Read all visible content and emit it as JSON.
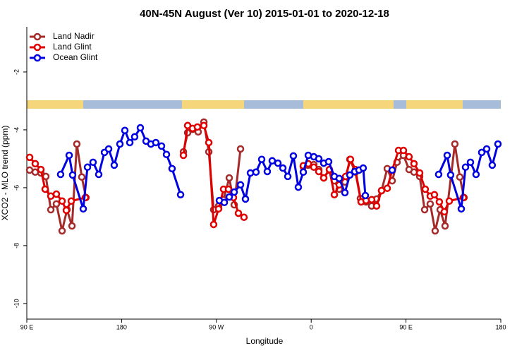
{
  "chart_data": {
    "type": "line",
    "title": "40N-45N August (Ver 10)   2015-01-01 to 2020-12-18",
    "x_label": "Longitude",
    "y_label": "XCO2 - MLO trend (ppm)",
    "xlim": [
      90,
      540
    ],
    "ylim": [
      -10.54,
      -0.44
    ],
    "xticks": [
      {
        "value": 90,
        "label": "90 E"
      },
      180,
      {
        "value": 270,
        "label": "90 W"
      },
      {
        "value": 360,
        "label": "0"
      },
      {
        "value": 450,
        "label": "90 E"
      },
      {
        "value": 540,
        "label": "180"
      }
    ],
    "yticks": [
      -2,
      -4,
      -6,
      -8,
      -10
    ],
    "legend": "top-left",
    "grid": false,
    "series": [
      {
        "name": "Land Nadir",
        "color": "#a52a2a",
        "x": [
          92.7,
          98.0,
          103.4,
          108.1,
          112.8,
          118.1,
          123.5,
          128.2,
          132.9,
          137.5,
          142.2,
          146.2,
          null,
          238.7,
          242.7,
          247.4,
          252.7,
          258.1,
          262.8,
          267.4,
          272.1,
          276.8,
          282.2,
          286.9,
          292.9,
          null,
          352.5,
          357.2,
          362.5,
          367.2,
          371.9,
          377.3,
          382.0,
          386.6,
          392.0,
          396.7,
          402.0,
          406.7,
          412.1,
          417.4,
          422.1,
          426.8,
          432.2,
          436.9,
          441.5,
          447.6,
          452.9,
          457.6,
          463.0,
          467.7,
          473.0,
          477.7,
          482.4,
          487.1,
          496.4,
          501.1,
          505.1
        ],
        "values": [
          -5.39,
          -5.46,
          -5.49,
          -5.61,
          -6.76,
          -6.56,
          -7.49,
          -6.76,
          -7.32,
          -4.49,
          -5.63,
          -6.34,
          null,
          -4.76,
          -4.1,
          -3.98,
          -4.07,
          -3.73,
          -4.76,
          -6.76,
          -6.63,
          -6.41,
          -5.66,
          -6.59,
          -4.66,
          null,
          -5.27,
          -5.22,
          -5.2,
          -5.37,
          -5.66,
          -5.39,
          -5.76,
          -6.05,
          -5.8,
          -5.02,
          -5.46,
          -6.37,
          -6.49,
          -6.63,
          -6.39,
          -6.1,
          -5.34,
          -5.76,
          -5.12,
          -4.88,
          -5.37,
          -5.46,
          -5.61,
          -6.76,
          -6.56,
          -7.49,
          -6.76,
          -7.32,
          -4.49,
          -5.63,
          -6.34
        ]
      },
      {
        "name": "Land Glint",
        "color": "#e00000",
        "x": [
          92.7,
          98.0,
          103.4,
          107.4,
          112.8,
          118.1,
          123.5,
          127.5,
          132.2,
          145.6,
          null,
          238.7,
          242.7,
          247.4,
          252.0,
          258.1,
          262.8,
          267.4,
          272.1,
          276.8,
          281.5,
          286.2,
          290.9,
          296.2,
          null,
          352.5,
          357.2,
          362.5,
          367.2,
          371.9,
          377.3,
          382.0,
          386.6,
          392.7,
          397.3,
          402.0,
          407.4,
          412.1,
          417.4,
          422.1,
          426.8,
          432.2,
          436.9,
          442.9,
          447.6,
          452.9,
          457.6,
          463.0,
          468.3,
          473.0,
          477.0,
          481.7,
          486.4,
          491.1,
          504.5
        ],
        "values": [
          -4.95,
          -5.17,
          -5.37,
          -6.05,
          -6.29,
          -6.22,
          -6.46,
          -6.78,
          -6.46,
          -6.34,
          null,
          -4.88,
          -3.85,
          -3.95,
          -3.9,
          -3.85,
          -4.44,
          -7.27,
          -6.73,
          -6.05,
          -6.05,
          -6.34,
          -6.88,
          -7.02,
          null,
          -5.24,
          -5.17,
          -5.29,
          -5.44,
          -5.66,
          -5.37,
          -6.24,
          -5.9,
          -5.61,
          -5.02,
          -5.37,
          -6.49,
          -6.44,
          -6.41,
          -6.63,
          -6.1,
          -6.02,
          -5.39,
          -4.71,
          -4.71,
          -4.93,
          -5.17,
          -5.49,
          -6.05,
          -6.29,
          -6.24,
          -6.49,
          -6.83,
          -6.46,
          -6.34
        ]
      },
      {
        "name": "Ocean Glint",
        "color": "#0000e0",
        "x": [
          122.1,
          130.2,
          133.5,
          143.6,
          147.6,
          152.9,
          158.3,
          163.7,
          167.7,
          173.0,
          178.4,
          183.1,
          187.8,
          192.4,
          197.8,
          203.2,
          207.8,
          212.5,
          217.9,
          222.6,
          227.9,
          236.0,
          null,
          272.8,
          277.5,
          282.2,
          286.9,
          292.9,
          297.6,
          302.3,
          307.6,
          313.0,
          318.3,
          323.0,
          328.4,
          333.1,
          337.8,
          343.1,
          347.8,
          352.5,
          357.2,
          362.5,
          367.2,
          371.9,
          376.6,
          382.0,
          386.6,
          392.0,
          396.7,
          401.4,
          405.4,
          409.4,
          411.4,
          null,
          436.9,
          null,
          481.0,
          489.1,
          492.4,
          502.5,
          506.5,
          511.2,
          516.5,
          521.9,
          526.6,
          531.9,
          537.3
        ],
        "values": [
          -5.54,
          -4.88,
          -5.56,
          -6.73,
          -5.29,
          -5.12,
          -5.54,
          -4.78,
          -4.66,
          -5.22,
          -4.49,
          -4.02,
          -4.44,
          -4.24,
          -3.93,
          -4.39,
          -4.49,
          -4.44,
          -4.56,
          -4.85,
          -5.34,
          -6.24,
          null,
          -6.44,
          -6.51,
          -6.32,
          -6.15,
          -5.9,
          -6.39,
          -5.49,
          -5.46,
          -5.02,
          -5.44,
          -5.07,
          -5.15,
          -5.32,
          -5.61,
          -4.9,
          -5.98,
          -5.46,
          -4.88,
          -4.93,
          -5.0,
          -5.15,
          -5.1,
          -5.61,
          -5.68,
          -6.17,
          -5.56,
          -5.44,
          -5.39,
          -5.32,
          -6.27,
          null,
          -5.39,
          null,
          -5.54,
          -4.88,
          -5.56,
          -6.73,
          -5.29,
          -5.12,
          -5.54,
          -4.78,
          -4.66,
          -5.22,
          -4.49
        ]
      }
    ]
  }
}
